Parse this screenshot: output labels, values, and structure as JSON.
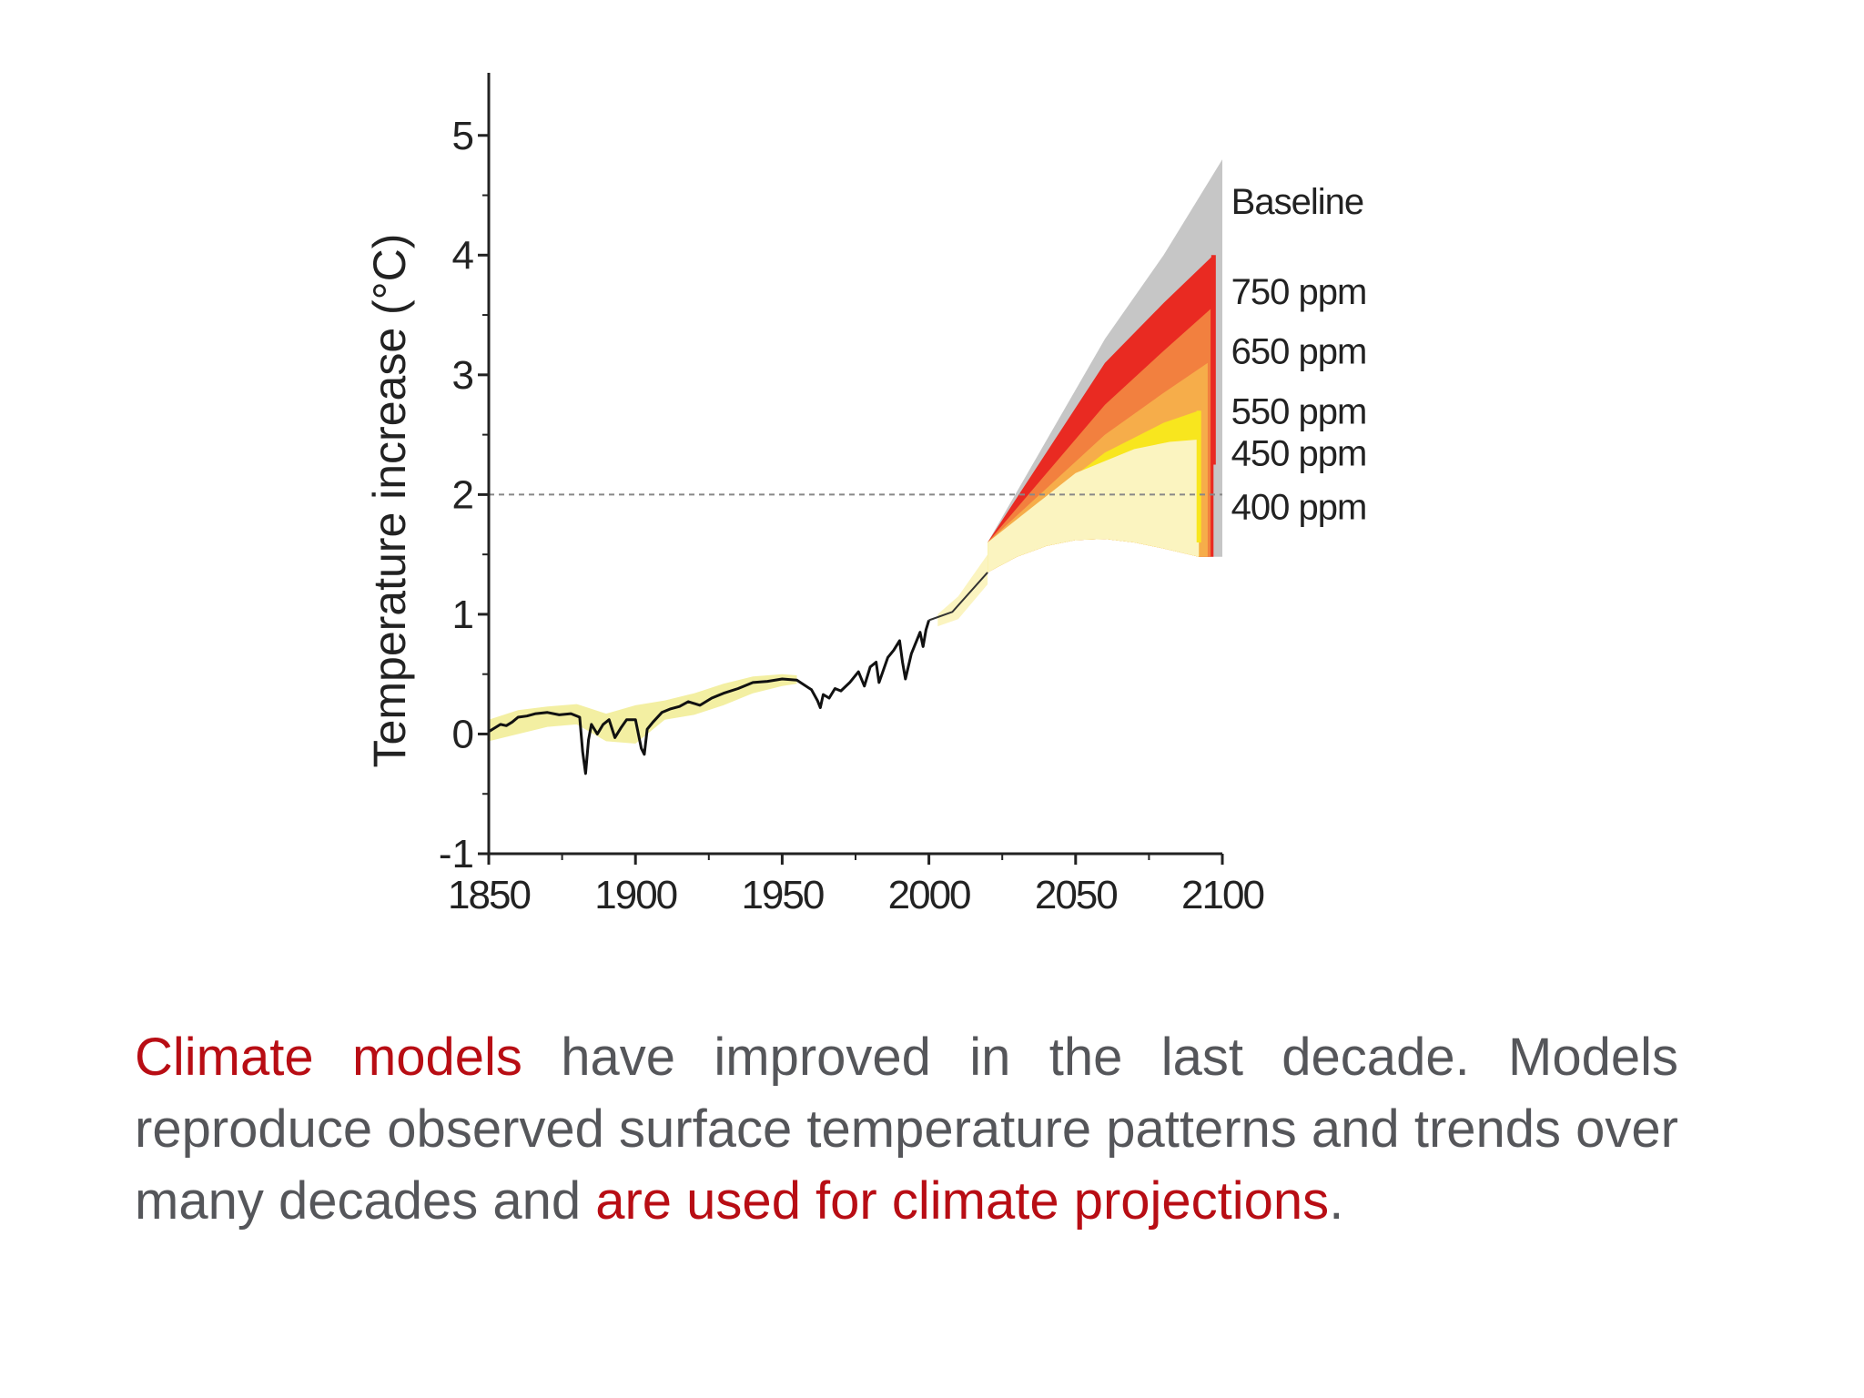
{
  "colors": {
    "axis": "#222222",
    "observed": "#111111",
    "observed_band": "#f3efa2",
    "baseline": "#c6c6c6",
    "ppm750": "#e92a22",
    "ppm650": "#f2803f",
    "ppm550": "#f6ad4a",
    "ppm450": "#f8e61e",
    "ppm400": "#fbf4c0",
    "reference_line": "#888888",
    "caption_text": "#55565a",
    "caption_highlight": "#b80d14"
  },
  "chart_data": {
    "type": "area",
    "ylabel": "Temperature increase (°C)",
    "xlim": [
      1850,
      2100
    ],
    "ylim": [
      -1,
      5.5
    ],
    "xticks": [
      "1850",
      "1900",
      "1950",
      "2000",
      "2050",
      "2100"
    ],
    "yticks": [
      "-1",
      "0",
      "1",
      "2",
      "3",
      "4",
      "5"
    ],
    "reference_line": {
      "y": 2,
      "style": "dashed"
    },
    "observed": {
      "x": [
        1850,
        1852,
        1854,
        1856,
        1858,
        1860,
        1863,
        1866,
        1870,
        1874,
        1878,
        1881,
        1882,
        1883,
        1884,
        1885,
        1887,
        1889,
        1891,
        1893,
        1895,
        1897,
        1900,
        1902,
        1903,
        1904,
        1906,
        1909,
        1912,
        1915,
        1918,
        1922,
        1926,
        1930,
        1935,
        1940,
        1945,
        1950,
        1955,
        1960,
        1962,
        1963,
        1964,
        1966,
        1968,
        1970,
        1973,
        1976,
        1978,
        1980,
        1982,
        1983,
        1986,
        1988,
        1990,
        1991,
        1992,
        1994,
        1997,
        1998,
        1999,
        2000
      ],
      "y": [
        0.02,
        0.05,
        0.08,
        0.07,
        0.1,
        0.14,
        0.15,
        0.17,
        0.18,
        0.16,
        0.17,
        0.14,
        -0.15,
        -0.33,
        -0.05,
        0.08,
        0.0,
        0.08,
        0.12,
        -0.03,
        0.05,
        0.12,
        0.12,
        -0.12,
        -0.17,
        0.04,
        0.1,
        0.18,
        0.21,
        0.23,
        0.27,
        0.24,
        0.3,
        0.34,
        0.38,
        0.43,
        0.44,
        0.46,
        0.45,
        0.37,
        0.28,
        0.22,
        0.33,
        0.3,
        0.38,
        0.36,
        0.43,
        0.52,
        0.4,
        0.56,
        0.6,
        0.43,
        0.64,
        0.7,
        0.78,
        0.6,
        0.46,
        0.67,
        0.85,
        0.73,
        0.87,
        0.95
      ]
    },
    "observed_uncertainty": {
      "x": [
        1850,
        1860,
        1870,
        1880,
        1890,
        1900,
        1910,
        1920,
        1930,
        1940,
        1950,
        1955
      ],
      "upper": [
        0.12,
        0.2,
        0.23,
        0.25,
        0.17,
        0.24,
        0.28,
        0.34,
        0.42,
        0.48,
        0.5,
        0.49
      ],
      "lower": [
        -0.06,
        0.0,
        0.06,
        0.08,
        -0.06,
        -0.08,
        0.12,
        0.16,
        0.24,
        0.34,
        0.4,
        0.42
      ]
    },
    "projection_early": {
      "x": [
        2003,
        2010,
        2020
      ],
      "upper": [
        1.0,
        1.15,
        1.5
      ],
      "lower": [
        0.9,
        0.96,
        1.25
      ]
    },
    "series": [
      {
        "name": "Baseline",
        "x": [
          2020,
          2060,
          2080,
          2100
        ],
        "values": [
          1.6,
          3.3,
          4.0,
          4.8
        ]
      },
      {
        "name": "750 ppm",
        "x": [
          2020,
          2060,
          2080,
          2097
        ],
        "values": [
          1.6,
          3.1,
          3.6,
          4.0
        ]
      },
      {
        "name": "650 ppm",
        "x": [
          2020,
          2060,
          2080,
          2096
        ],
        "values": [
          1.6,
          2.75,
          3.2,
          3.55
        ]
      },
      {
        "name": "550 ppm",
        "x": [
          2020,
          2060,
          2080,
          2095
        ],
        "values": [
          1.6,
          2.5,
          2.85,
          3.1
        ]
      },
      {
        "name": "450 ppm",
        "x": [
          2020,
          2060,
          2080,
          2092
        ],
        "values": [
          1.6,
          2.35,
          2.6,
          2.7
        ]
      },
      {
        "name": "400 ppm",
        "x": [
          2020,
          2050,
          2070,
          2082,
          2092
        ],
        "values": [
          1.6,
          2.18,
          2.38,
          2.44,
          2.46
        ]
      }
    ],
    "projection_floor": {
      "x": [
        2020,
        2030,
        2040,
        2050,
        2060,
        2070,
        2080,
        2092
      ],
      "values": [
        1.35,
        1.48,
        1.57,
        1.62,
        1.63,
        1.6,
        1.55,
        1.48
      ]
    },
    "labels": [
      {
        "text": "Baseline",
        "x": 2103,
        "y": 4.45
      },
      {
        "text": "750 ppm",
        "x": 2103,
        "y": 3.7
      },
      {
        "text": "650 ppm",
        "x": 2103,
        "y": 3.2
      },
      {
        "text": "550 ppm",
        "x": 2103,
        "y": 2.7
      },
      {
        "text": "450 ppm",
        "x": 2103,
        "y": 2.35
      },
      {
        "text": "400 ppm",
        "x": 2103,
        "y": 1.9
      }
    ]
  },
  "caption": {
    "part1_highlight": "Climate models",
    "part2": " have improved in the last decade. Models reproduce observed surface temperature patterns and trends over many decades and ",
    "part3_highlight": "are used for climate projections",
    "part4": "."
  }
}
